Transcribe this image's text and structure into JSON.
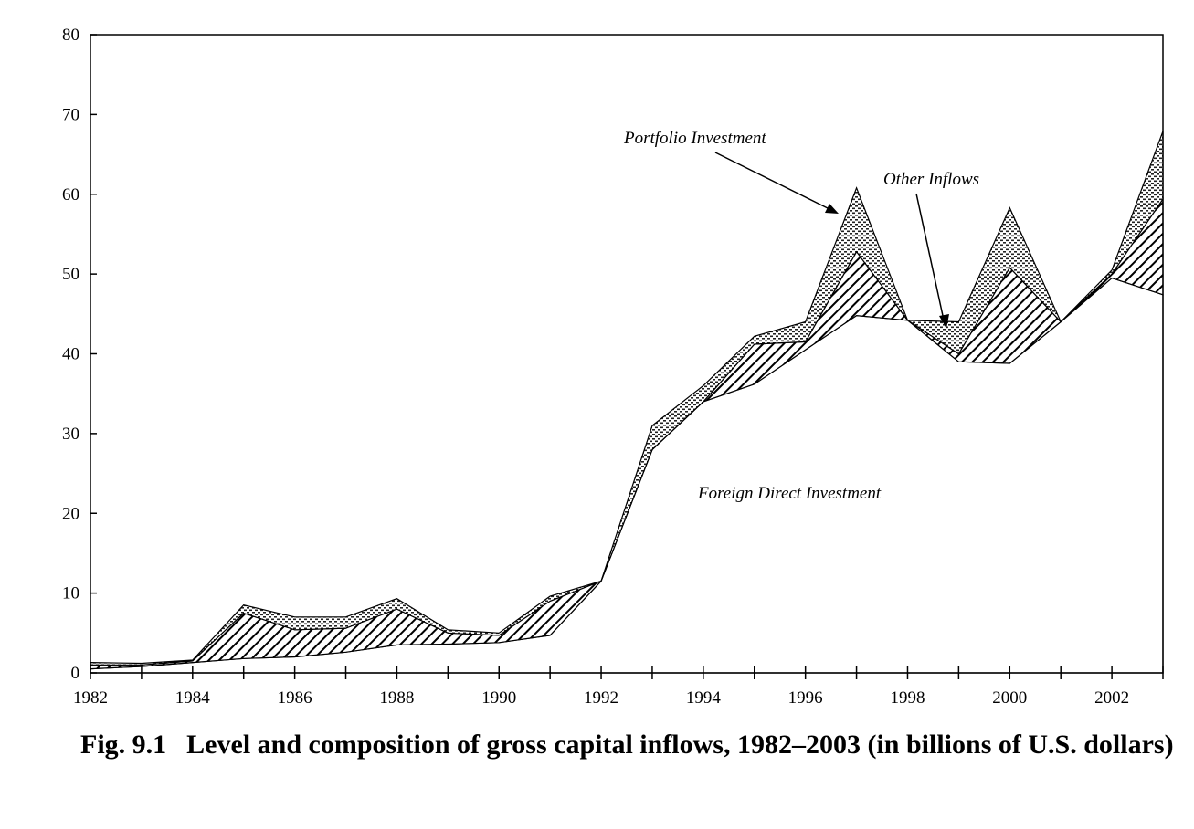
{
  "caption": {
    "figure_number": "Fig. 9.1",
    "text": "Level and composition of gross capital inflows, 1982–2003 (in billions of U.S. dollars)"
  },
  "annotations": {
    "portfolio": "Portfolio Investment",
    "other": "Other Inflows",
    "fdi": "Foreign Direct Investment"
  },
  "chart_data": {
    "type": "area",
    "stacked": true,
    "x": [
      1982,
      1983,
      1984,
      1985,
      1986,
      1987,
      1988,
      1989,
      1990,
      1991,
      1992,
      1993,
      1994,
      1995,
      1996,
      1997,
      1998,
      1999,
      2000,
      2001,
      2002,
      2003
    ],
    "series": [
      {
        "name": "Foreign Direct Investment",
        "pattern": "solid-white",
        "values": [
          0.5,
          0.8,
          1.3,
          1.8,
          2.0,
          2.6,
          3.5,
          3.6,
          3.8,
          4.7,
          11.5,
          28.0,
          34.0,
          36.2,
          40.5,
          44.8,
          44.2,
          39.0,
          38.8,
          44.0,
          49.5,
          47.4
        ]
      },
      {
        "name": "Other Inflows",
        "pattern": "diagonal-hatch",
        "values": [
          0.5,
          0.2,
          0.2,
          5.7,
          3.4,
          3.0,
          4.5,
          1.4,
          0.9,
          4.3,
          0.0,
          0.0,
          0.0,
          5.0,
          1.0,
          8.0,
          0.0,
          1.0,
          12.0,
          0.0,
          0.5,
          12.0
        ]
      },
      {
        "name": "Portfolio Investment",
        "pattern": "dotted",
        "values": [
          0.3,
          0.2,
          0.1,
          1.0,
          1.6,
          1.4,
          1.3,
          0.4,
          0.3,
          0.6,
          0.0,
          3.0,
          2.0,
          1.0,
          2.5,
          8.0,
          0.0,
          4.0,
          7.5,
          0.0,
          0.5,
          8.5
        ]
      }
    ],
    "xlim": [
      1982,
      2003
    ],
    "ylim": [
      0,
      80
    ],
    "xticks": [
      1982,
      1984,
      1986,
      1988,
      1990,
      1992,
      1994,
      1996,
      1998,
      2000,
      2002
    ],
    "yticks": [
      0,
      10,
      20,
      30,
      40,
      50,
      60,
      70,
      80
    ],
    "grid": false,
    "legend": "none"
  }
}
